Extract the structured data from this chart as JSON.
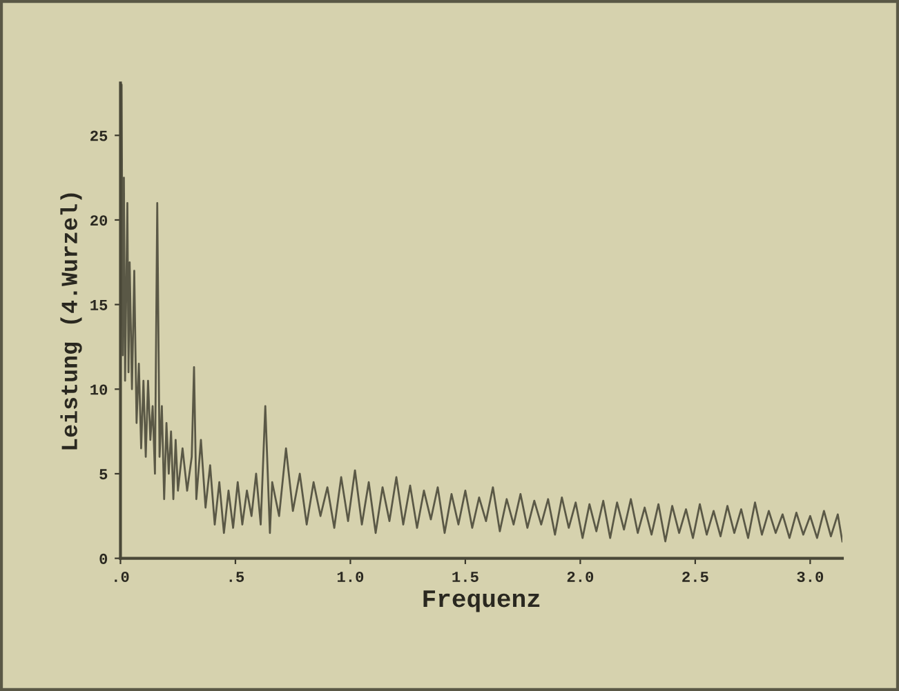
{
  "chart_data": {
    "type": "line",
    "xlabel": "Frequenz",
    "ylabel": "Leistung (4.Wurzel)",
    "xlim": [
      0,
      3.14
    ],
    "ylim": [
      0,
      28.1
    ],
    "xticks": [
      {
        "value": 0,
        "label": ".0"
      },
      {
        "value": 0.5,
        "label": ".5"
      },
      {
        "value": 1,
        "label": "1.0"
      },
      {
        "value": 1.5,
        "label": "1.5"
      },
      {
        "value": 2,
        "label": "2.0"
      },
      {
        "value": 2.5,
        "label": "2.5"
      },
      {
        "value": 3,
        "label": "3.0"
      }
    ],
    "yticks": [
      0,
      5,
      10,
      15,
      20,
      25
    ],
    "grid": false,
    "legend": false,
    "marker": "none",
    "line_style": "solid",
    "series": [
      {
        "color": "#5a5846",
        "x": [
          0,
          0.005,
          0.01,
          0.015,
          0.02,
          0.03,
          0.035,
          0.04,
          0.05,
          0.06,
          0.07,
          0.08,
          0.09,
          0.1,
          0.11,
          0.12,
          0.13,
          0.14,
          0.15,
          0.16,
          0.17,
          0.18,
          0.19,
          0.2,
          0.21,
          0.22,
          0.23,
          0.24,
          0.25,
          0.27,
          0.29,
          0.31,
          0.32,
          0.33,
          0.35,
          0.37,
          0.39,
          0.41,
          0.43,
          0.45,
          0.47,
          0.49,
          0.51,
          0.53,
          0.55,
          0.57,
          0.59,
          0.61,
          0.63,
          0.65,
          0.66,
          0.69,
          0.72,
          0.75,
          0.78,
          0.81,
          0.84,
          0.87,
          0.9,
          0.93,
          0.96,
          0.99,
          1.02,
          1.05,
          1.08,
          1.11,
          1.14,
          1.17,
          1.2,
          1.23,
          1.26,
          1.29,
          1.32,
          1.35,
          1.38,
          1.41,
          1.44,
          1.47,
          1.5,
          1.53,
          1.56,
          1.59,
          1.62,
          1.65,
          1.68,
          1.71,
          1.74,
          1.77,
          1.8,
          1.83,
          1.86,
          1.89,
          1.92,
          1.95,
          1.98,
          2.01,
          2.04,
          2.07,
          2.1,
          2.13,
          2.16,
          2.19,
          2.22,
          2.25,
          2.28,
          2.31,
          2.34,
          2.37,
          2.4,
          2.43,
          2.46,
          2.49,
          2.52,
          2.55,
          2.58,
          2.61,
          2.64,
          2.67,
          2.7,
          2.73,
          2.76,
          2.79,
          2.82,
          2.85,
          2.88,
          2.91,
          2.94,
          2.97,
          3.0,
          3.03,
          3.06,
          3.09,
          3.12,
          3.14
        ],
        "values": [
          10,
          28,
          12,
          22.5,
          10.5,
          21,
          11,
          17.5,
          10,
          17,
          8,
          11.5,
          6.5,
          10.5,
          6,
          10.5,
          7,
          9,
          5,
          21,
          6,
          9,
          3.5,
          8,
          5,
          7.5,
          3.5,
          7,
          4,
          6.5,
          4,
          6,
          11.3,
          3.5,
          7,
          3,
          5.5,
          2,
          4.5,
          1.5,
          4,
          1.8,
          4.5,
          2,
          4,
          2.5,
          5,
          2,
          9,
          1.5,
          4.5,
          2.5,
          6.5,
          2.8,
          5,
          2,
          4.5,
          2.5,
          4.2,
          1.8,
          4.8,
          2.2,
          5.2,
          2,
          4.5,
          1.5,
          4.2,
          2.2,
          4.8,
          2,
          4.3,
          1.8,
          4,
          2.3,
          4.2,
          1.5,
          3.8,
          2,
          4,
          1.8,
          3.6,
          2.2,
          4.2,
          1.6,
          3.5,
          2,
          3.8,
          1.8,
          3.4,
          2,
          3.5,
          1.4,
          3.6,
          1.8,
          3.3,
          1.2,
          3.2,
          1.6,
          3.4,
          1.2,
          3.3,
          1.7,
          3.5,
          1.5,
          3,
          1.4,
          3.2,
          1,
          3.1,
          1.5,
          2.9,
          1.2,
          3.2,
          1.4,
          2.8,
          1.3,
          3.1,
          1.5,
          2.9,
          1.2,
          3.3,
          1.4,
          2.8,
          1.5,
          2.6,
          1.2,
          2.7,
          1.4,
          2.5,
          1.2,
          2.8,
          1.3,
          2.6,
          1
        ]
      }
    ]
  }
}
